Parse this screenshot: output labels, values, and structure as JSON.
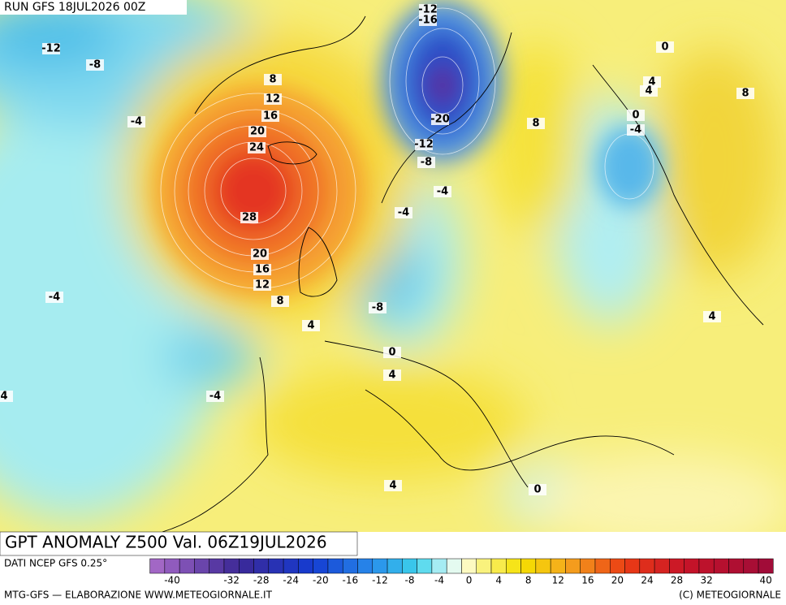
{
  "header": {
    "run": "RUN GFS 18JUL2026 00Z"
  },
  "map": {
    "contour_labels": [
      -12,
      -16,
      -12,
      -8,
      0,
      8,
      4,
      4,
      8,
      12,
      16,
      0,
      -4,
      -20,
      8,
      -4,
      20,
      24,
      -12,
      -8,
      -4,
      28,
      -4,
      20,
      16,
      12,
      -4,
      8,
      -8,
      4,
      4,
      0,
      4,
      4,
      -4,
      4,
      0
    ]
  },
  "footer": {
    "title": "GPT ANOMALY Z500 Val. 06Z19JUL2026",
    "source": "DATI NCEP GFS 0.25°",
    "credit": "MTG-GFS — ELABORAZIONE WWW.METEOGIORNALE.IT",
    "copyright": "(C) METEOGIORNALE"
  },
  "legend": {
    "ticks": [
      -40,
      -32,
      -28,
      -24,
      -20,
      -16,
      -12,
      -8,
      -4,
      0,
      4,
      8,
      12,
      16,
      20,
      24,
      28,
      32,
      40
    ]
  }
}
